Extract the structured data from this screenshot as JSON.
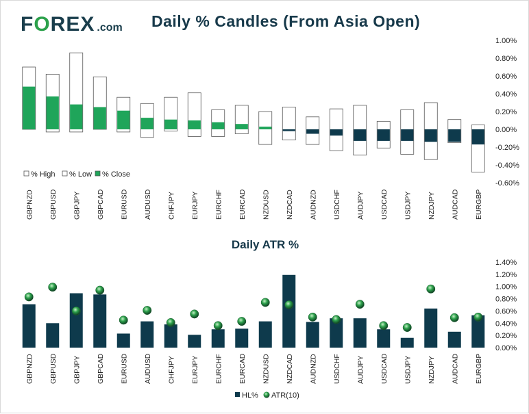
{
  "header": {
    "logo_main": "FOREX",
    "logo_domain": ".com"
  },
  "chart_data": [
    {
      "type": "bar",
      "title": "Daily % Candles (From Asia Open)",
      "categories": [
        "GBPNZD",
        "GBPUSD",
        "GBPJPY",
        "GBPCAD",
        "EURUSD",
        "AUDUSD",
        "CHFJPY",
        "EURJPY",
        "EURCHF",
        "EURCAD",
        "NZDUSD",
        "NZDCAD",
        "AUDNZD",
        "USDCHF",
        "AUDJPY",
        "USDCAD",
        "USDJPY",
        "NZDJPY",
        "AUDCAD",
        "EURGBP"
      ],
      "series": [
        {
          "name": "% High",
          "values": [
            0.7,
            0.62,
            0.86,
            0.59,
            0.36,
            0.29,
            0.36,
            0.41,
            0.22,
            0.27,
            0.2,
            0.25,
            0.14,
            0.23,
            0.27,
            0.09,
            0.22,
            0.3,
            0.11,
            0.05
          ]
        },
        {
          "name": "% Low",
          "values": [
            0.0,
            -0.03,
            -0.03,
            0.0,
            -0.03,
            -0.09,
            -0.02,
            -0.08,
            -0.08,
            -0.05,
            -0.17,
            -0.12,
            -0.17,
            -0.24,
            -0.29,
            -0.21,
            -0.28,
            -0.34,
            -0.15,
            -0.48
          ]
        },
        {
          "name": "% Close",
          "values": [
            0.48,
            0.37,
            0.28,
            0.25,
            0.21,
            0.13,
            0.11,
            0.1,
            0.08,
            0.06,
            0.03,
            -0.02,
            -0.05,
            -0.07,
            -0.13,
            -0.13,
            -0.13,
            -0.14,
            -0.14,
            -0.17
          ]
        }
      ],
      "yticks": [
        "1.00%",
        "0.80%",
        "0.60%",
        "0.40%",
        "0.20%",
        "0.00%",
        "-0.20%",
        "-0.40%",
        "-0.60%"
      ],
      "ylim": [
        -0.6,
        1.0
      ],
      "legend": [
        "% High",
        "% Low",
        "% Close"
      ],
      "colors": {
        "close_up": "#1fa55a",
        "close_down": "#0e3a4c",
        "candle_border": "#555555"
      }
    },
    {
      "type": "bar",
      "title": "Daily ATR %",
      "categories": [
        "GBPNZD",
        "GBPUSD",
        "GBPJPY",
        "GBPCAD",
        "EURUSD",
        "AUDUSD",
        "CHFJPY",
        "EURJPY",
        "EURCHF",
        "EURCAD",
        "NZDUSD",
        "NZDCAD",
        "AUDNZD",
        "USDCHF",
        "AUDJPY",
        "USDCAD",
        "USDJPY",
        "NZDJPY",
        "AUDCAD",
        "EURGBP"
      ],
      "series": [
        {
          "name": "HL%",
          "values": [
            0.71,
            0.4,
            0.89,
            0.87,
            0.23,
            0.43,
            0.38,
            0.21,
            0.3,
            0.31,
            0.43,
            1.19,
            0.42,
            0.48,
            0.48,
            0.3,
            0.16,
            0.64,
            0.26,
            0.53
          ]
        },
        {
          "name": "ATR(10)",
          "values": [
            0.83,
            0.99,
            0.6,
            0.94,
            0.45,
            0.61,
            0.41,
            0.55,
            0.36,
            0.43,
            0.74,
            0.7,
            0.5,
            0.46,
            0.71,
            0.36,
            0.33,
            0.96,
            0.49,
            0.5
          ]
        }
      ],
      "yticks": [
        "1.40%",
        "1.20%",
        "1.00%",
        "0.80%",
        "0.60%",
        "0.40%",
        "0.20%",
        "0.00%"
      ],
      "ylim": [
        0,
        1.4
      ],
      "legend": [
        "HL%",
        "ATR(10)"
      ],
      "colors": {
        "bar": "#0e3a4c",
        "dot": "#2ca14b"
      }
    }
  ]
}
